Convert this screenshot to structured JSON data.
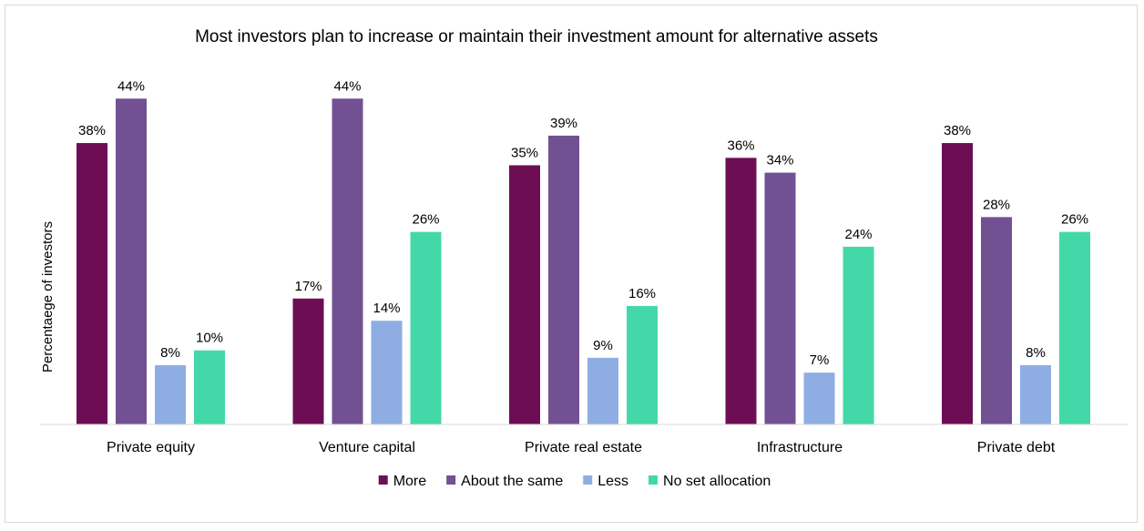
{
  "chart_data": {
    "type": "bar",
    "title": "Most investors plan to increase or maintain their investment amount for alternative assets",
    "xlabel": "",
    "ylabel": "Percentaege of investors",
    "ylim": [
      0,
      45
    ],
    "grid": false,
    "legend_position": "bottom",
    "categories": [
      "Private equity",
      "Venture capital",
      "Private real estate",
      "Infrastructure",
      "Private debt"
    ],
    "series": [
      {
        "name": "More",
        "color": "#6d0e54",
        "values": [
          38,
          17,
          35,
          36,
          38
        ],
        "labels": [
          "38%",
          "17%",
          "35%",
          "36%",
          "38%"
        ]
      },
      {
        "name": "About the same",
        "color": "#725193",
        "values": [
          44,
          44,
          39,
          34,
          28
        ],
        "labels": [
          "44%",
          "44%",
          "39%",
          "34%",
          "28%"
        ]
      },
      {
        "name": "Less",
        "color": "#8eaee3",
        "values": [
          8,
          14,
          9,
          7,
          8
        ],
        "labels": [
          "8%",
          "14%",
          "9%",
          "7%",
          "8%"
        ]
      },
      {
        "name": "No set allocation",
        "color": "#44d8a9",
        "values": [
          10,
          26,
          16,
          24,
          26
        ],
        "labels": [
          "10%",
          "26%",
          "16%",
          "24%",
          "26%"
        ]
      }
    ]
  }
}
